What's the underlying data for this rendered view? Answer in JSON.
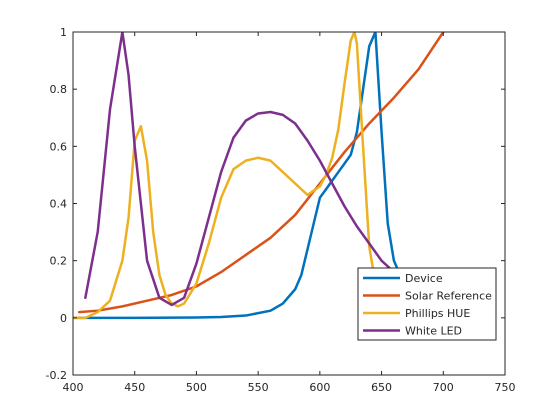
{
  "chart_data": {
    "type": "line",
    "title": "",
    "xlabel": "",
    "ylabel": "",
    "xlim": [
      400,
      750
    ],
    "ylim": [
      -0.2,
      1
    ],
    "xticks": [
      400,
      450,
      500,
      550,
      600,
      650,
      700,
      750
    ],
    "yticks": [
      -0.2,
      0,
      0.2,
      0.4,
      0.6,
      0.8,
      1
    ],
    "grid": false,
    "legend_position": "bottom-right",
    "series": [
      {
        "name": "Device",
        "color": "#0072BD",
        "x": [
          400,
          450,
          500,
          520,
          540,
          560,
          570,
          580,
          585,
          590,
          595,
          600,
          605,
          610,
          615,
          620,
          625,
          630,
          635,
          640,
          645,
          650,
          655,
          660,
          665
        ],
        "y": [
          0,
          0,
          0.001,
          0.003,
          0.008,
          0.025,
          0.05,
          0.1,
          0.15,
          0.24,
          0.33,
          0.42,
          0.45,
          0.48,
          0.51,
          0.54,
          0.57,
          0.65,
          0.8,
          0.95,
          1.0,
          0.65,
          0.33,
          0.2,
          0.15
        ]
      },
      {
        "name": "Solar Reference",
        "color": "#D95319",
        "x": [
          405,
          420,
          440,
          460,
          480,
          500,
          520,
          540,
          560,
          580,
          600,
          620,
          640,
          660,
          680,
          700
        ],
        "y": [
          0.02,
          0.025,
          0.04,
          0.06,
          0.08,
          0.11,
          0.16,
          0.22,
          0.28,
          0.36,
          0.47,
          0.58,
          0.68,
          0.77,
          0.87,
          1.0
        ]
      },
      {
        "name": "Phillips HUE",
        "color": "#EDB120",
        "x": [
          400,
          410,
          420,
          430,
          440,
          445,
          450,
          455,
          460,
          465,
          470,
          475,
          480,
          485,
          490,
          500,
          510,
          520,
          530,
          540,
          550,
          560,
          570,
          580,
          590,
          600,
          605,
          610,
          615,
          620,
          625,
          628,
          630,
          635,
          640,
          645,
          650,
          660
        ],
        "y": [
          0,
          0,
          0.02,
          0.06,
          0.2,
          0.35,
          0.62,
          0.67,
          0.55,
          0.3,
          0.15,
          0.08,
          0.05,
          0.04,
          0.05,
          0.12,
          0.26,
          0.42,
          0.52,
          0.55,
          0.56,
          0.55,
          0.51,
          0.47,
          0.43,
          0.46,
          0.5,
          0.56,
          0.66,
          0.82,
          0.97,
          1.0,
          0.96,
          0.6,
          0.25,
          0.12,
          0.1,
          0.08
        ]
      },
      {
        "name": "White LED",
        "color": "#7E2F8E",
        "x": [
          410,
          420,
          430,
          440,
          445,
          450,
          460,
          470,
          480,
          490,
          500,
          510,
          520,
          530,
          540,
          550,
          560,
          570,
          580,
          590,
          600,
          610,
          620,
          630,
          640,
          650,
          660,
          665
        ],
        "y": [
          0.07,
          0.3,
          0.73,
          1.0,
          0.85,
          0.6,
          0.2,
          0.07,
          0.045,
          0.07,
          0.19,
          0.35,
          0.51,
          0.63,
          0.69,
          0.715,
          0.72,
          0.71,
          0.68,
          0.62,
          0.55,
          0.47,
          0.39,
          0.32,
          0.26,
          0.2,
          0.16,
          0.14
        ]
      }
    ]
  }
}
